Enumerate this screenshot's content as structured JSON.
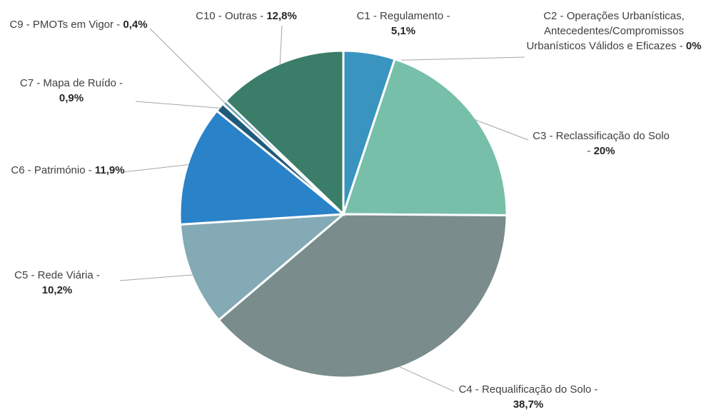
{
  "chart_data": {
    "type": "pie",
    "categories": [
      "C1 - Regulamento -",
      "C2 - Operações Urbanísticas, Antecedentes/Compromissos Urbanísticos Válidos e Eficazes -",
      "C3 - Reclassificação do Solo -",
      "C4 - Requalificação do Solo -",
      "C5 - Rede Viária -",
      "C6 - Património -",
      "C7 - Mapa de Ruído -",
      "C9 - PMOTs em Vigor -",
      "C10 - Outras -"
    ],
    "values": [
      5.1,
      0,
      20,
      38.7,
      10.2,
      11.9,
      0.9,
      0.4,
      12.8
    ],
    "value_labels": [
      "5,1%",
      "0%",
      "20%",
      "38,7%",
      "10,2%",
      "11,9%",
      "0,9%",
      "0,4%",
      "12,8%"
    ],
    "colors": [
      "#3994bf",
      "#5fb39a",
      "#77bfa9",
      "#7a8c8c",
      "#84aab5",
      "#2a82c8",
      "#1f5a7a",
      "#5a9ab0",
      "#3a7d69"
    ]
  }
}
